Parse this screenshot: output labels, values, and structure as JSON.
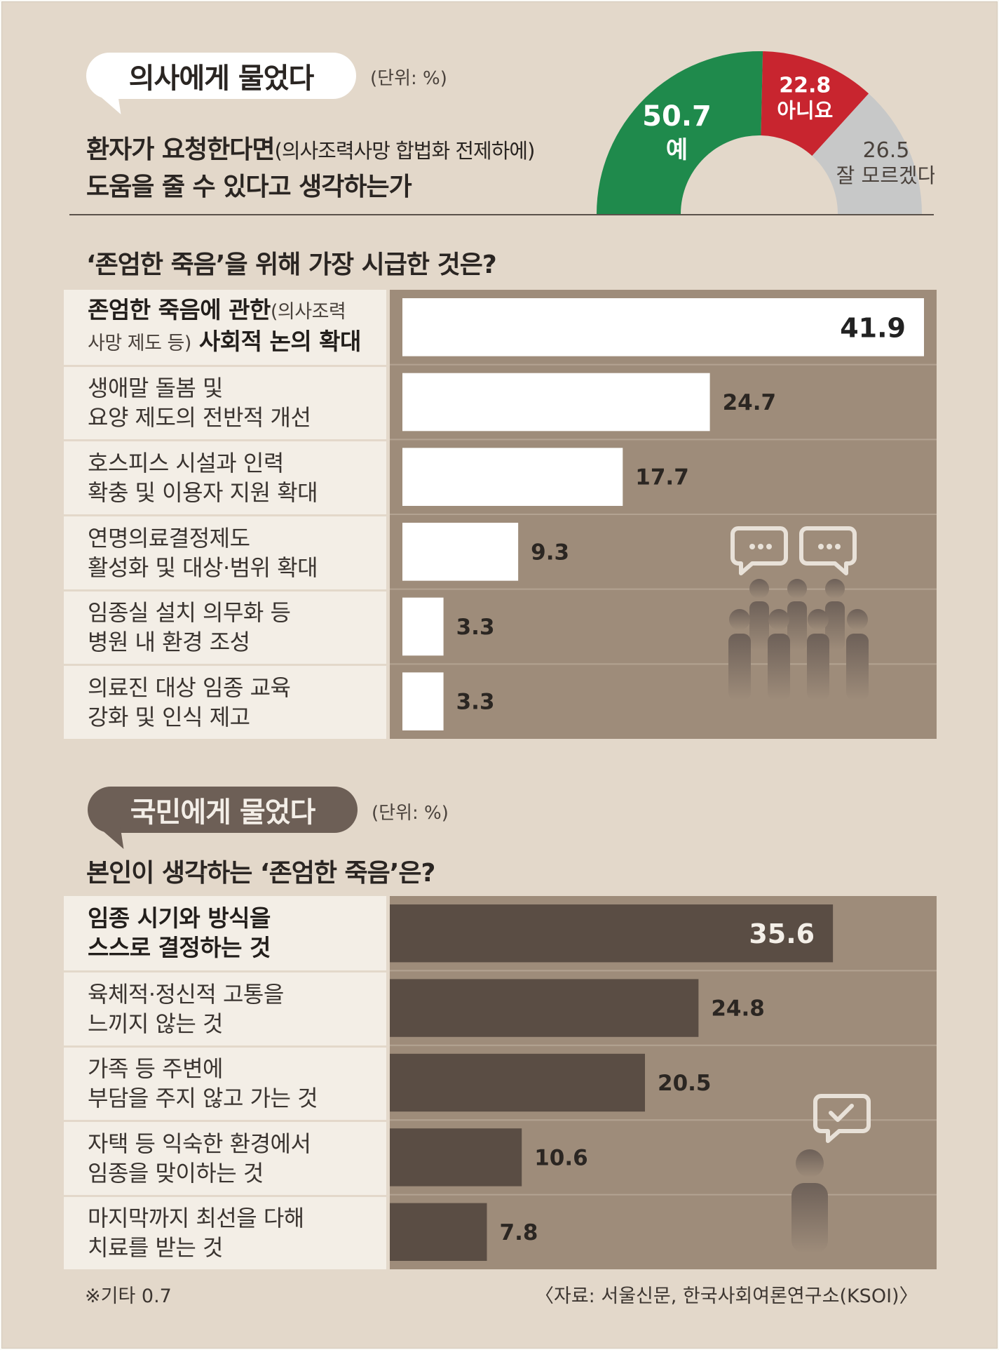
{
  "section1": {
    "bubble": "의사에게 물었다",
    "unit": "(단위: %)",
    "question_line1_bold": "환자가 요청한다면",
    "question_line1_sub": "(의사조력사망 합법화 전제하에)",
    "question_line2": "도움을 줄 수 있다고 생각하는가"
  },
  "section1b": {
    "question": "‘존엄한 죽음’을 위해 가장 시급한 것은?"
  },
  "section2": {
    "bubble": "국민에게 물었다",
    "unit": "(단위: %)",
    "question": "본인이 생각하는 ‘존엄한 죽음’은?"
  },
  "colors": {
    "yes": "#1f8a4c",
    "no": "#c8252f",
    "unsure": "#c7c8c8",
    "panel": "#9e8c7a",
    "bar_light": "#ffffff",
    "bar_dark": "#5a4d44"
  },
  "icons": [
    "people-chat-icon",
    "person-check-icon"
  ],
  "chart_data": [
    {
      "type": "pie",
      "variant": "half-donut",
      "categories": [
        "예",
        "아니요",
        "잘 모르겠다"
      ],
      "values": [
        50.7,
        22.8,
        26.5
      ],
      "labels": [
        "50.7",
        "22.8",
        "26.5"
      ]
    },
    {
      "type": "bar",
      "orientation": "horizontal",
      "categories": [
        {
          "l1": "존엄한 죽음에 관한",
          "l1_sub": "(의사조력",
          "l2_sub": "사망 제도 등)",
          "l2": " 사회적 논의 확대"
        },
        {
          "l1": "생애말 돌봄 및",
          "l2": "요양 제도의 전반적 개선"
        },
        {
          "l1": "호스피스 시설과 인력",
          "l2": "확충 및 이용자 지원 확대"
        },
        {
          "l1": "연명의료결정제도",
          "l2": "활성화 및 대상·범위 확대"
        },
        {
          "l1": "임종실 설치 의무화 등",
          "l2": "병원 내 환경 조성"
        },
        {
          "l1": "의료진 대상 임종 교육",
          "l2": "강화 및 인식 제고"
        }
      ],
      "values": [
        41.9,
        24.7,
        17.7,
        9.3,
        3.3,
        3.3
      ],
      "labels": [
        "41.9",
        "24.7",
        "17.7",
        "9.3",
        "3.3",
        "3.3"
      ],
      "xlim": [
        0,
        41.9
      ]
    },
    {
      "type": "bar",
      "orientation": "horizontal",
      "categories": [
        {
          "l1": "임종 시기와 방식을",
          "l2": "스스로 결정하는 것"
        },
        {
          "l1": "육체적·정신적 고통을",
          "l2": "느끼지 않는 것"
        },
        {
          "l1": "가족 등 주변에",
          "l2": "부담을 주지 않고 가는 것"
        },
        {
          "l1": "자택 등 익숙한 환경에서",
          "l2": "임종을 맞이하는 것"
        },
        {
          "l1": "마지막까지 최선을 다해",
          "l2": "치료를 받는 것"
        }
      ],
      "values": [
        35.6,
        24.8,
        20.5,
        10.6,
        7.8
      ],
      "labels": [
        "35.6",
        "24.8",
        "20.5",
        "10.6",
        "7.8"
      ],
      "xlim": [
        0,
        41.9
      ]
    }
  ],
  "footer": {
    "note": "※기타 0.7",
    "source": "〈자료: 서울신문, 한국사회여론연구소(KSOI)〉"
  }
}
